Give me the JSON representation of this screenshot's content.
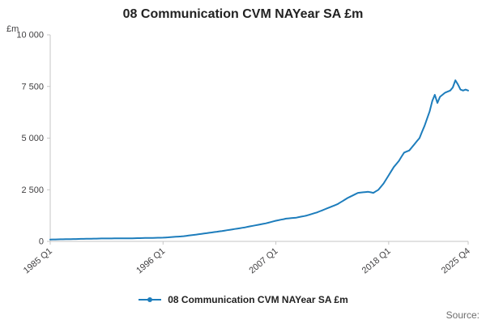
{
  "title": "08 Communication CVM NAYear SA £m",
  "unit_label": "£m",
  "legend": {
    "label": "08 Communication CVM NAYear SA £m"
  },
  "source_label": "Source:",
  "colors": {
    "line": "#1d7dbc",
    "axis": "#c6c6c6",
    "tick_text": "#414042",
    "title_text": "#222222",
    "source_text": "#6d6d6d"
  },
  "chart_data": {
    "type": "line",
    "title": "08 Communication CVM NAYear SA £m",
    "xlabel": "",
    "ylabel": "£m",
    "frequency": "quarterly",
    "x_start": "1985 Q1",
    "x_end": "2025 Q4",
    "ylim": [
      0,
      10000
    ],
    "grid": false,
    "legend_position": "bottom",
    "y_ticks": [
      {
        "label": "0",
        "value": 0
      },
      {
        "label": "2 500",
        "value": 2500
      },
      {
        "label": "5 000",
        "value": 5000
      },
      {
        "label": "7 500",
        "value": 7500
      },
      {
        "label": "10 000",
        "value": 10000
      }
    ],
    "x_ticks": [
      {
        "label": "1985 Q1",
        "index": 0
      },
      {
        "label": "1996 Q1",
        "index": 44
      },
      {
        "label": "2007 Q1",
        "index": 88
      },
      {
        "label": "2018 Q1",
        "index": 132
      },
      {
        "label": "2025 Q4",
        "index": 163
      }
    ],
    "series": [
      {
        "name": "08 Communication CVM NAYear SA £m",
        "values": [
          90,
          93,
          95,
          98,
          100,
          103,
          105,
          108,
          110,
          113,
          115,
          118,
          120,
          123,
          125,
          128,
          130,
          133,
          135,
          138,
          140,
          141,
          142,
          143,
          143,
          144,
          145,
          146,
          147,
          148,
          148,
          149,
          150,
          153,
          155,
          158,
          160,
          163,
          165,
          168,
          170,
          173,
          175,
          178,
          180,
          189,
          198,
          206,
          215,
          224,
          233,
          241,
          250,
          266,
          283,
          299,
          315,
          331,
          348,
          364,
          380,
          398,
          415,
          433,
          450,
          468,
          485,
          503,
          520,
          540,
          560,
          580,
          600,
          620,
          640,
          660,
          680,
          704,
          728,
          751,
          775,
          799,
          823,
          846,
          870,
          903,
          935,
          968,
          1000,
          1025,
          1050,
          1075,
          1100,
          1113,
          1125,
          1138,
          1150,
          1175,
          1200,
          1225,
          1250,
          1288,
          1325,
          1363,
          1400,
          1450,
          1500,
          1550,
          1600,
          1650,
          1700,
          1750,
          1800,
          1875,
          1950,
          2025,
          2100,
          2163,
          2225,
          2288,
          2350,
          2363,
          2375,
          2388,
          2400,
          2375,
          2350,
          2425,
          2500,
          2650,
          2800,
          3000,
          3200,
          3400,
          3600,
          3750,
          3900,
          4100,
          4300,
          4350,
          4400,
          4550,
          4700,
          4850,
          5000,
          5300,
          5600,
          5950,
          6300,
          6800,
          7100,
          6700,
          7000,
          7100,
          7200,
          7250,
          7300,
          7450,
          7800,
          7600,
          7350,
          7300,
          7350,
          7300
        ]
      }
    ]
  }
}
